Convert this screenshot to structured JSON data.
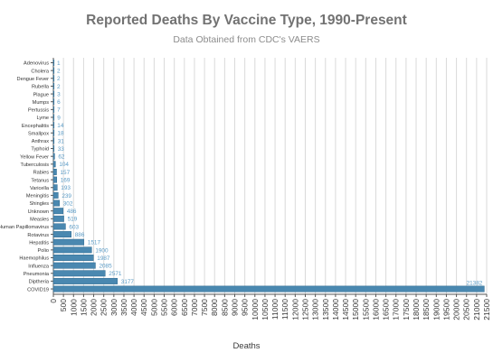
{
  "header": {
    "title": "Reported Deaths By Vaccine Type, 1990-Present",
    "subtitle": "Data Obtained from CDC's VAERS"
  },
  "colors": {
    "bar": "#4a88b0",
    "bar_stroke": "#2e6a90",
    "value_label": "#5a9bc6",
    "grid": "#dadada",
    "axis": "#555555"
  },
  "chart_data": {
    "type": "bar",
    "orientation": "horizontal",
    "title": "Reported Deaths By Vaccine Type, 1990-Present",
    "subtitle": "Data Obtained from CDC's VAERS",
    "xlabel": "Deaths",
    "ylabel": "",
    "xlim": [
      0,
      21500
    ],
    "tick_step": 500,
    "grid": true,
    "categories": [
      "Adenovirus",
      "Cholera",
      "Dengue Fever",
      "Rubella",
      "Plague",
      "Mumps",
      "Pertussis",
      "Lyme",
      "Encephalitis",
      "Smallpox",
      "Anthrax",
      "Typhoid",
      "Yellow Fever",
      "Tuberculosis",
      "Rabies",
      "Tetanus",
      "Varicella",
      "Meningitis",
      "Shingles",
      "Unknown",
      "Measles",
      "Human Papillomavirus",
      "Rotavirus",
      "Hepatitis",
      "Polio",
      "Haemophilus",
      "Influenza",
      "Pneumonia",
      "Diptheria",
      "COVID19"
    ],
    "values": [
      1,
      2,
      2,
      2,
      3,
      6,
      7,
      9,
      14,
      18,
      31,
      33,
      62,
      104,
      157,
      169,
      193,
      239,
      302,
      486,
      519,
      603,
      886,
      1517,
      1900,
      1987,
      2085,
      2571,
      3177,
      21382
    ]
  }
}
